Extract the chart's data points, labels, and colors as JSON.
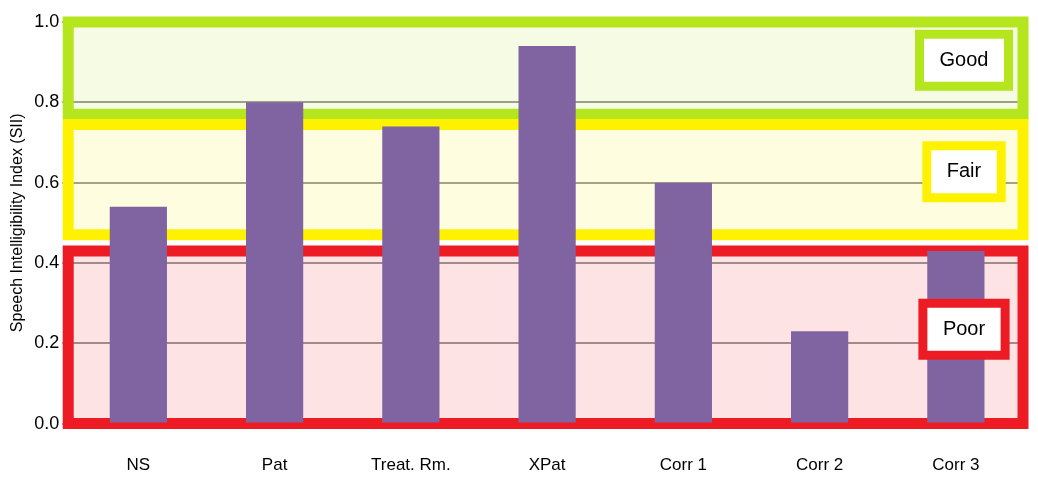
{
  "chart_data": {
    "type": "bar",
    "ylabel": "Speech Intelligibility Index (SII)",
    "categories": [
      "NS",
      "Pat",
      "Treat. Rm.",
      "XPat",
      "Corr 1",
      "Corr 2",
      "Corr 3"
    ],
    "values": [
      0.54,
      0.8,
      0.74,
      0.94,
      0.6,
      0.23,
      0.43
    ],
    "color": "#8064a2",
    "ylim": [
      0,
      1
    ],
    "yticks": [
      {
        "value": 0,
        "label": "0.0"
      },
      0.2,
      0.4,
      0.6,
      0.8,
      {
        "value": 1,
        "label": "1.0"
      }
    ],
    "grid": "y",
    "bands": [
      {
        "axis": "y",
        "from": 0.77,
        "to": 1.0,
        "label": "Good",
        "color": "#b5e61d"
      },
      {
        "axis": "y",
        "from": 0.47,
        "to": 0.745,
        "label": "Fair",
        "color": "#fff200"
      },
      {
        "axis": "y",
        "from": 0,
        "to": 0.43,
        "label": "Poor",
        "color": "#ed1c24"
      }
    ]
  }
}
